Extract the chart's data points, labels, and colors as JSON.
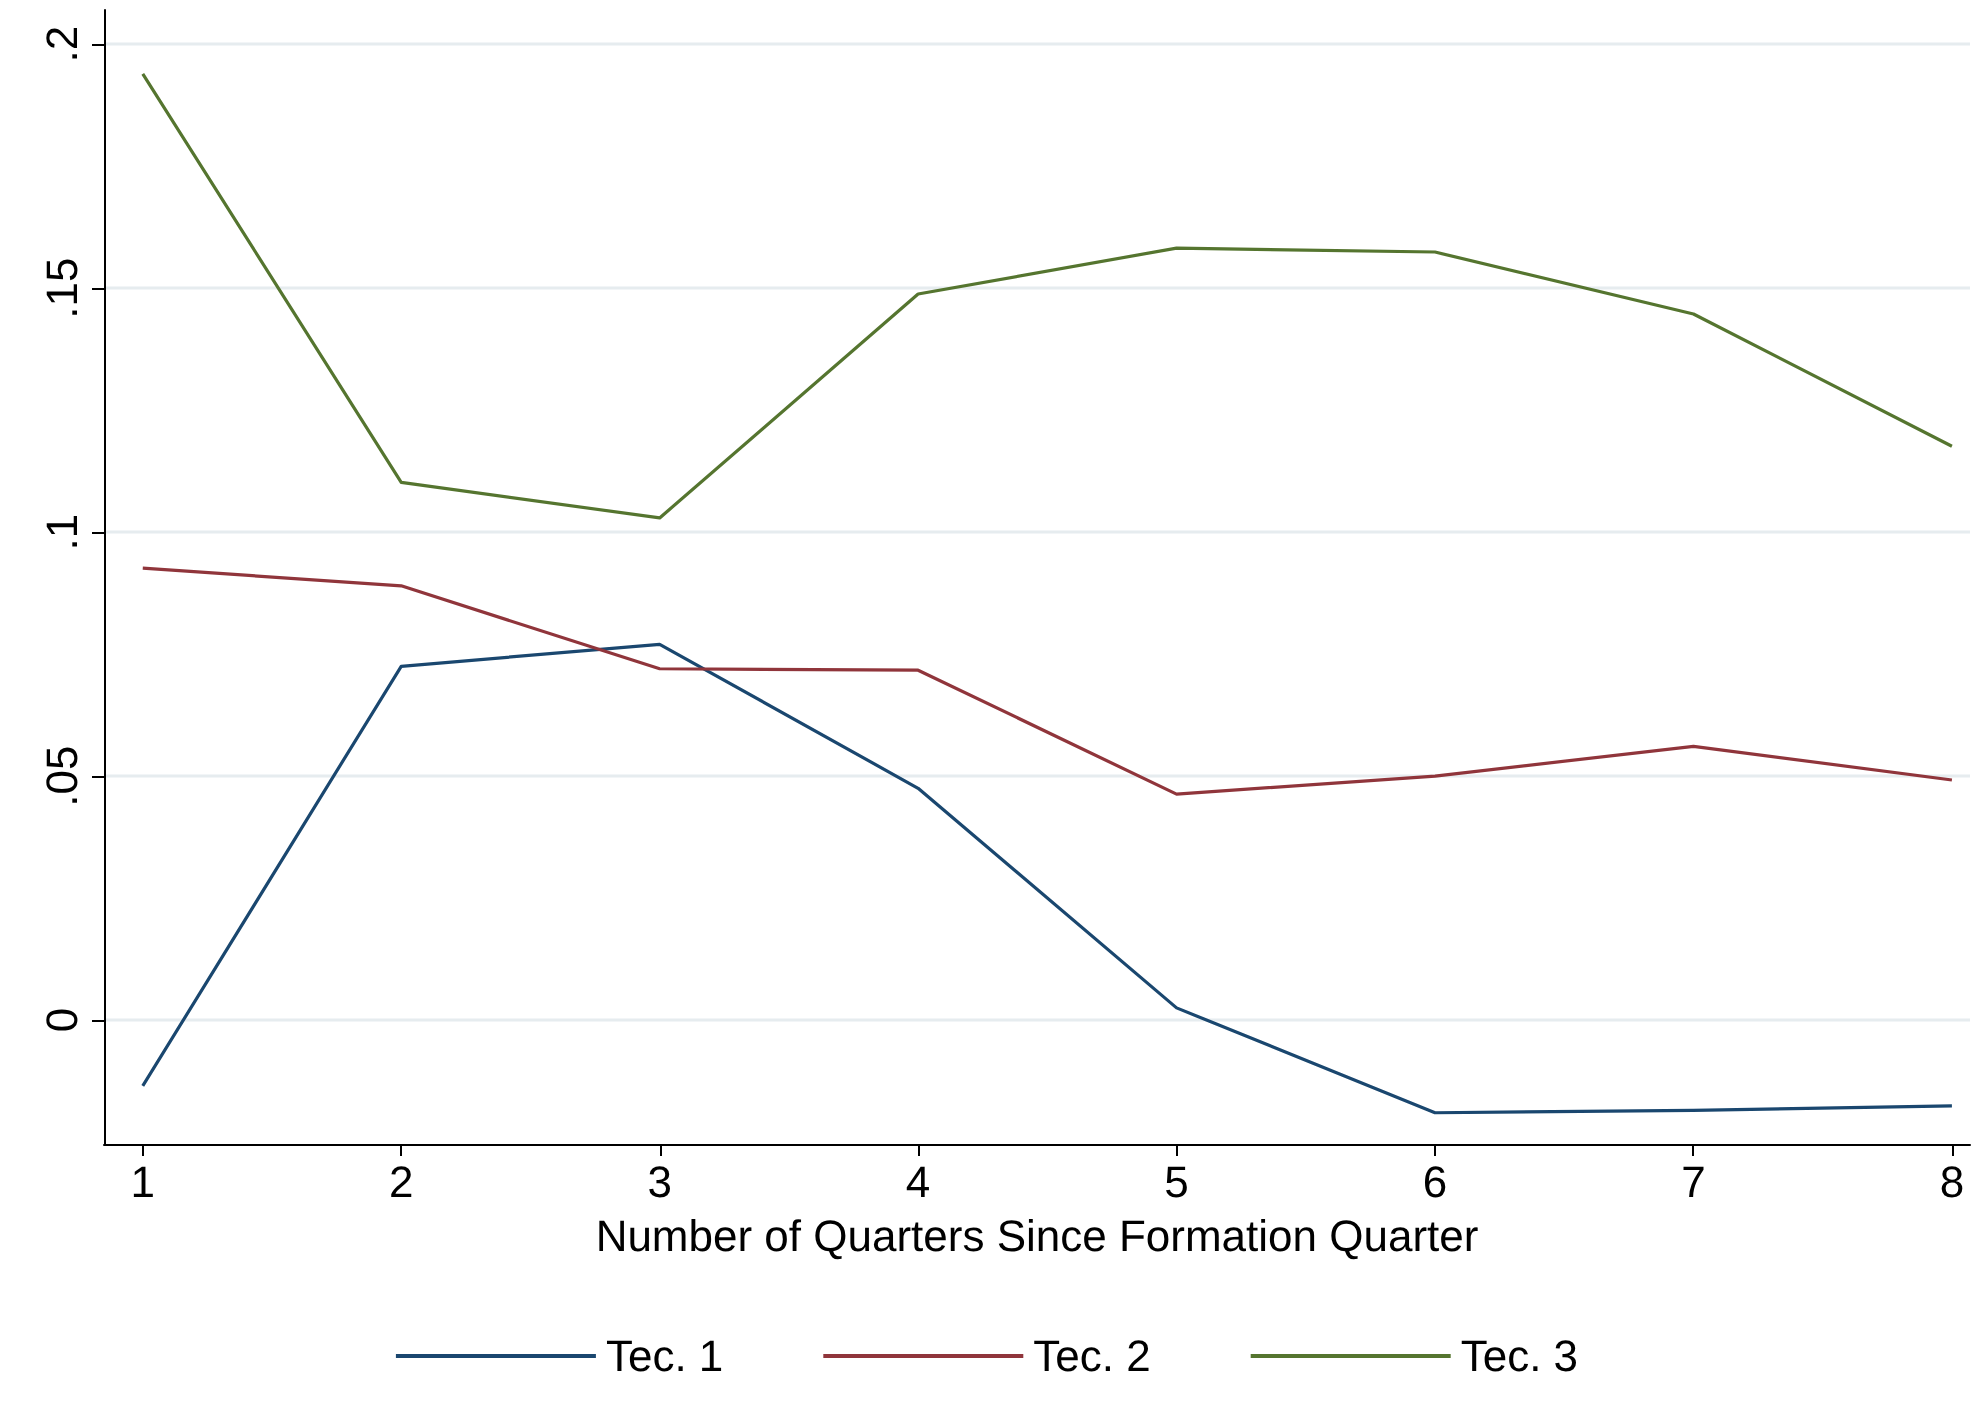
{
  "chart_data": {
    "type": "line",
    "xlabel": "Number of Quarters Since Formation Quarter",
    "x": [
      1,
      2,
      3,
      4,
      5,
      6,
      7,
      8
    ],
    "series": [
      {
        "name": "Tec. 1",
        "color": "#1a476f",
        "values": [
          -0.0135,
          0.0725,
          0.077,
          0.0475,
          0.0025,
          -0.019,
          -0.0185,
          -0.0176
        ]
      },
      {
        "name": "Tec. 2",
        "color": "#90353b",
        "values": [
          0.0926,
          0.089,
          0.072,
          0.0717,
          0.0463,
          0.05,
          0.0561,
          0.0492
        ]
      },
      {
        "name": "Tec. 3",
        "color": "#55752f",
        "values": [
          0.1939,
          0.1102,
          0.1029,
          0.1488,
          0.1582,
          0.1574,
          0.1447,
          0.1176
        ]
      }
    ],
    "xlim": [
      0.85,
      8.07
    ],
    "xticks": [
      1,
      2,
      3,
      4,
      5,
      6,
      7,
      8
    ],
    "ylim": [
      -0.0254,
      0.207
    ],
    "yticks": [
      {
        "value": 0,
        "label": "0"
      },
      {
        "value": 0.05,
        "label": ".05"
      },
      {
        "value": 0.1,
        "label": ".1"
      },
      {
        "value": 0.15,
        "label": ".15"
      },
      {
        "value": 0.2,
        "label": ".2"
      }
    ],
    "grid": "y",
    "legend": "bottom",
    "marker": "none",
    "line_style": "solid"
  }
}
